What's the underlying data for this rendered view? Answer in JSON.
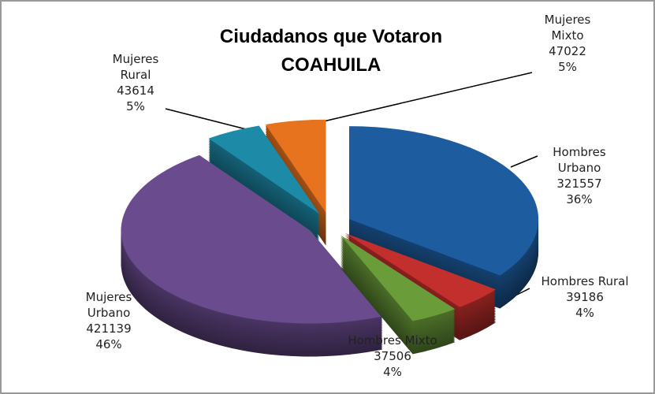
{
  "chart_data": {
    "type": "pie",
    "title": "Ciudadanos que Votaron",
    "subtitle": "COAHUILA",
    "categories": [
      "Hombres Urbano",
      "Hombres Rural",
      "Hombres Mixto",
      "Mujeres Urbano",
      "Mujeres Rural",
      "Mujeres Mixto"
    ],
    "values": [
      321557,
      39186,
      37506,
      421139,
      43614,
      47022
    ],
    "percent_labels": [
      "36%",
      "4%",
      "4%",
      "46%",
      "5%",
      "5%"
    ],
    "colors": [
      "#1d5c9e",
      "#c22f2c",
      "#6b9c3a",
      "#6a4b8e",
      "#1d8aa8",
      "#e8731f"
    ]
  }
}
